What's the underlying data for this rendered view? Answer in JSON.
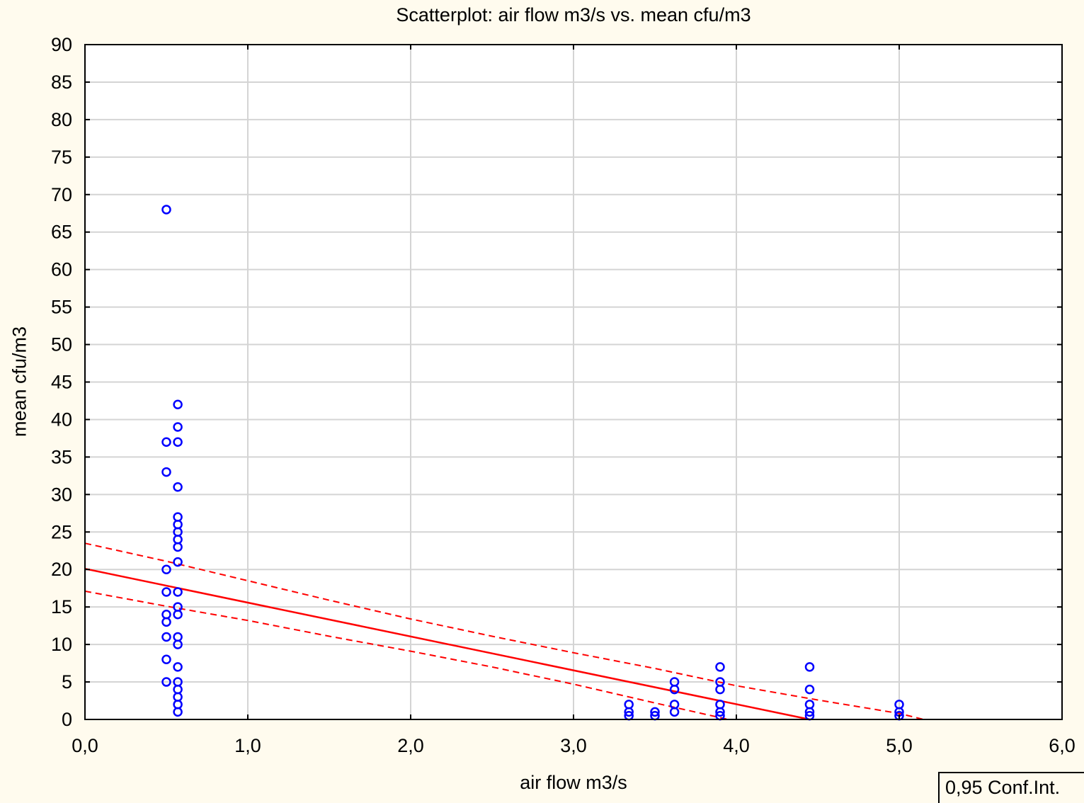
{
  "chart_data": {
    "type": "scatter",
    "title": "Scatterplot: air flow m3/s vs. mean cfu/m3",
    "xlabel": "air flow m3/s",
    "ylabel": "mean cfu/m3",
    "xlim": [
      0,
      6
    ],
    "ylim": [
      0,
      90
    ],
    "x_ticks": [
      "0,0",
      "1,0",
      "2,0",
      "3,0",
      "4,0",
      "5,0",
      "6,0"
    ],
    "y_ticks": [
      "0",
      "5",
      "10",
      "15",
      "20",
      "25",
      "30",
      "35",
      "40",
      "45",
      "50",
      "55",
      "60",
      "65",
      "70",
      "75",
      "80",
      "85",
      "90"
    ],
    "grid": true,
    "legend": {
      "label": "0,95 Conf.Int.",
      "position": "bottom-right"
    },
    "colors": {
      "points": "#0000ff",
      "fit": "#ff0000",
      "background": "#fffbee"
    },
    "points": [
      {
        "x": 0.5,
        "y": 68
      },
      {
        "x": 0.5,
        "y": 37
      },
      {
        "x": 0.5,
        "y": 33
      },
      {
        "x": 0.5,
        "y": 20
      },
      {
        "x": 0.5,
        "y": 17
      },
      {
        "x": 0.5,
        "y": 14
      },
      {
        "x": 0.5,
        "y": 13
      },
      {
        "x": 0.5,
        "y": 11
      },
      {
        "x": 0.5,
        "y": 8
      },
      {
        "x": 0.5,
        "y": 5
      },
      {
        "x": 0.57,
        "y": 42
      },
      {
        "x": 0.57,
        "y": 39
      },
      {
        "x": 0.57,
        "y": 37
      },
      {
        "x": 0.57,
        "y": 31
      },
      {
        "x": 0.57,
        "y": 27
      },
      {
        "x": 0.57,
        "y": 26
      },
      {
        "x": 0.57,
        "y": 25
      },
      {
        "x": 0.57,
        "y": 24
      },
      {
        "x": 0.57,
        "y": 23
      },
      {
        "x": 0.57,
        "y": 21
      },
      {
        "x": 0.57,
        "y": 17
      },
      {
        "x": 0.57,
        "y": 15
      },
      {
        "x": 0.57,
        "y": 14
      },
      {
        "x": 0.57,
        "y": 11
      },
      {
        "x": 0.57,
        "y": 10
      },
      {
        "x": 0.57,
        "y": 7
      },
      {
        "x": 0.57,
        "y": 5
      },
      {
        "x": 0.57,
        "y": 4
      },
      {
        "x": 0.57,
        "y": 3
      },
      {
        "x": 0.57,
        "y": 2
      },
      {
        "x": 0.57,
        "y": 1
      },
      {
        "x": 3.34,
        "y": 2
      },
      {
        "x": 3.34,
        "y": 1
      },
      {
        "x": 3.34,
        "y": 0.5
      },
      {
        "x": 3.5,
        "y": 1
      },
      {
        "x": 3.5,
        "y": 0.5
      },
      {
        "x": 3.62,
        "y": 5
      },
      {
        "x": 3.62,
        "y": 4
      },
      {
        "x": 3.62,
        "y": 2
      },
      {
        "x": 3.62,
        "y": 1
      },
      {
        "x": 3.9,
        "y": 7
      },
      {
        "x": 3.9,
        "y": 5
      },
      {
        "x": 3.9,
        "y": 4
      },
      {
        "x": 3.9,
        "y": 2
      },
      {
        "x": 3.9,
        "y": 1
      },
      {
        "x": 3.9,
        "y": 0.5
      },
      {
        "x": 4.45,
        "y": 7
      },
      {
        "x": 4.45,
        "y": 4
      },
      {
        "x": 4.45,
        "y": 2
      },
      {
        "x": 4.45,
        "y": 1
      },
      {
        "x": 4.45,
        "y": 0.5
      },
      {
        "x": 5.0,
        "y": 2
      },
      {
        "x": 5.0,
        "y": 1
      },
      {
        "x": 5.0,
        "y": 0.5
      }
    ],
    "regression_line": [
      {
        "x": 0,
        "y": 20.1
      },
      {
        "x": 4.45,
        "y": 0
      }
    ],
    "ci_upper": [
      {
        "x": 0,
        "y": 23.5
      },
      {
        "x": 0.5,
        "y": 21.1
      },
      {
        "x": 1.0,
        "y": 18.5
      },
      {
        "x": 1.5,
        "y": 15.9
      },
      {
        "x": 2.0,
        "y": 13.4
      },
      {
        "x": 2.5,
        "y": 11.1
      },
      {
        "x": 3.0,
        "y": 8.9
      },
      {
        "x": 3.5,
        "y": 6.8
      },
      {
        "x": 4.0,
        "y": 4.5
      },
      {
        "x": 4.5,
        "y": 2.6
      },
      {
        "x": 5.0,
        "y": 0.8
      },
      {
        "x": 5.15,
        "y": 0
      }
    ],
    "ci_lower": [
      {
        "x": 0,
        "y": 17.1
      },
      {
        "x": 0.5,
        "y": 15.1
      },
      {
        "x": 1.0,
        "y": 13.2
      },
      {
        "x": 1.5,
        "y": 11.1
      },
      {
        "x": 2.0,
        "y": 9.1
      },
      {
        "x": 2.5,
        "y": 7.0
      },
      {
        "x": 3.0,
        "y": 4.7
      },
      {
        "x": 3.5,
        "y": 2.2
      },
      {
        "x": 3.95,
        "y": 0
      }
    ]
  }
}
